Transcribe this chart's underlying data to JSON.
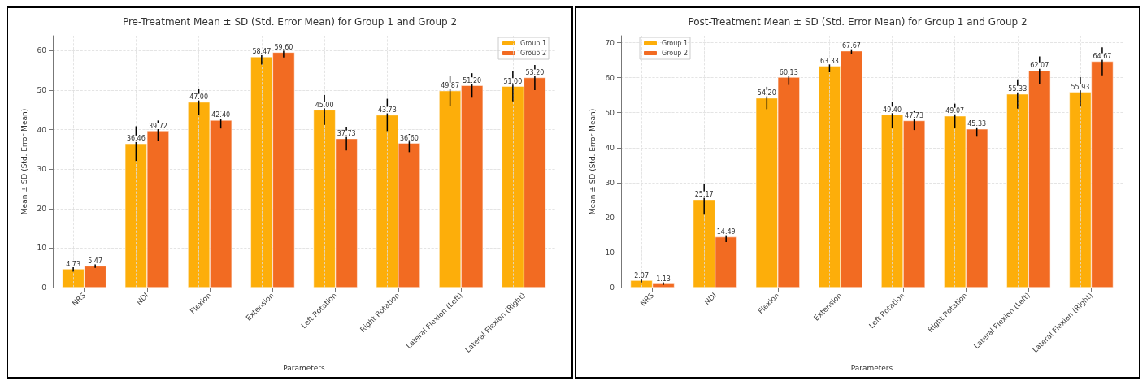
{
  "chart_data": [
    {
      "type": "bar",
      "title": "Pre-Treatment Mean ± SD (Std. Error Mean) for Group 1 and Group 2",
      "xlabel": "Parameters",
      "ylabel": "Mean ± SD (Std. Error Mean)",
      "categories": [
        "NRS",
        "NDI",
        "Flexion",
        "Extension",
        "Left Rotation",
        "Right Rotation",
        "Lateral Flexion (Left)",
        "Lateral Flexion (Right)"
      ],
      "series": [
        {
          "name": "Group 1",
          "color": "#fdae0a",
          "values": [
            4.73,
            36.46,
            47.0,
            58.47,
            45.0,
            43.73,
            49.87,
            51.0
          ],
          "errors": [
            0.7,
            4.4,
            3.4,
            2.0,
            3.8,
            4.1,
            3.8,
            3.8
          ],
          "value_labels": [
            "4.73",
            "36.46",
            "47.00",
            "58.47",
            "45.00",
            "43.73",
            "49.87",
            "51.00"
          ]
        },
        {
          "name": "Group 2",
          "color": "#f26b22",
          "values": [
            5.47,
            39.72,
            42.4,
            59.6,
            37.73,
            36.6,
            51.2,
            53.2
          ],
          "errors": [
            0.5,
            2.6,
            2.1,
            1.3,
            3.0,
            2.3,
            3.1,
            3.2
          ],
          "value_labels": [
            "5.47",
            "39.72",
            "42.40",
            "59.60",
            "37.73",
            "36.60",
            "51.20",
            "53.20"
          ]
        }
      ],
      "ylim": [
        0,
        63.8
      ],
      "yticks": [
        0,
        10,
        20,
        30,
        40,
        50,
        60
      ],
      "grid": true,
      "legend": "top right"
    },
    {
      "type": "bar",
      "title": "Post-Treatment Mean ± SD (Std. Error Mean) for Group 1 and Group 2",
      "xlabel": "Parameters",
      "ylabel": "Mean ± SD (Std. Error Mean)",
      "categories": [
        "NRS",
        "NDI",
        "Flexion",
        "Extension",
        "Left Rotation",
        "Right Rotation",
        "Lateral Flexion (Left)",
        "Lateral Flexion (Right)"
      ],
      "series": [
        {
          "name": "Group 1",
          "color": "#fdae0a",
          "values": [
            2.07,
            25.17,
            54.2,
            63.33,
            49.4,
            49.07,
            55.33,
            55.93
          ],
          "errors": [
            0.6,
            4.3,
            3.2,
            1.8,
            3.7,
            3.5,
            4.2,
            4.2
          ],
          "value_labels": [
            "2.07",
            "25.17",
            "54.20",
            "63.33",
            "49.40",
            "49.07",
            "55.33",
            "55.93"
          ]
        },
        {
          "name": "Group 2",
          "color": "#f26b22",
          "values": [
            1.13,
            14.49,
            60.13,
            67.67,
            47.73,
            45.33,
            62.07,
            64.67
          ],
          "errors": [
            0.4,
            1.5,
            2.2,
            0.9,
            2.7,
            2.2,
            4.0,
            4.0
          ],
          "value_labels": [
            "1.13",
            "14.49",
            "60.13",
            "67.67",
            "47.73",
            "45.33",
            "62.07",
            "64.67"
          ]
        }
      ],
      "ylim": [
        0,
        72
      ],
      "yticks": [
        0,
        10,
        20,
        30,
        40,
        50,
        60,
        70
      ],
      "grid": true,
      "legend": "top left"
    }
  ]
}
